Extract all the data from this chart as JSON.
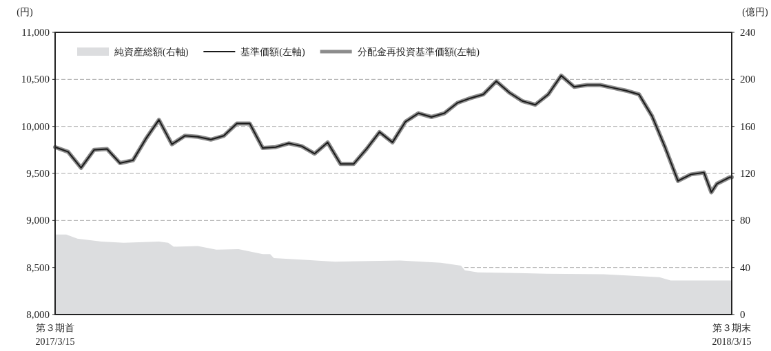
{
  "chart_data": {
    "type": "line",
    "ylabel": "(円)",
    "y2label": "(億円)",
    "xlim": [
      "2017-03-15",
      "2018-03-15"
    ],
    "xticks": [
      {
        "value": "2017-03-15",
        "label": "第３期首\n2017/3/15"
      },
      {
        "value": "2018-03-15",
        "label": "第３期末\n2018/3/15"
      }
    ],
    "ylim": [
      8000,
      11000
    ],
    "yticks": [
      {
        "value": 8000,
        "label": "8,000"
      },
      {
        "value": 8500,
        "label": "8,500"
      },
      {
        "value": 9000,
        "label": "9,000"
      },
      {
        "value": 9500,
        "label": "9,500"
      },
      {
        "value": 10000,
        "label": "10,000"
      },
      {
        "value": 10500,
        "label": "10,500"
      },
      {
        "value": 11000,
        "label": "11,000"
      }
    ],
    "y2lim": [
      0,
      240
    ],
    "y2ticks": [
      0,
      40,
      80,
      120,
      160,
      200,
      240
    ],
    "grid": "y",
    "legend": "top left",
    "series": [
      {
        "name": "純資産総額(右軸)",
        "type": "area",
        "axis": "y2",
        "color": "#dcdddf",
        "x": [
          "2017-03-15",
          "2017-03-21",
          "2017-03-27",
          "2017-04-09",
          "2017-04-21",
          "2017-05-10",
          "2017-05-15",
          "2017-05-18",
          "2017-05-31",
          "2017-06-10",
          "2017-06-22",
          "2017-07-05",
          "2017-07-09",
          "2017-07-11",
          "2017-07-29",
          "2017-08-13",
          "2017-09-17",
          "2017-10-09",
          "2017-10-20",
          "2017-10-22",
          "2017-10-29",
          "2017-12-05",
          "2018-01-05",
          "2018-02-04",
          "2018-02-10",
          "2018-03-15"
        ],
        "values": [
          68,
          68,
          64.5,
          62,
          61,
          62,
          61,
          57.7,
          58.3,
          55.2,
          55.6,
          51.3,
          51.3,
          48,
          46.4,
          45,
          46,
          44,
          41.5,
          37.6,
          35.9,
          34.7,
          34.3,
          31.8,
          29,
          29
        ]
      },
      {
        "name": "基準価額(左軸)",
        "axis": "y",
        "color": "#1a1a1a",
        "x": [
          "2017-03-15",
          "2017-03-22",
          "2017-03-29",
          "2017-04-05",
          "2017-04-12",
          "2017-04-19",
          "2017-04-26",
          "2017-05-03",
          "2017-05-10",
          "2017-05-17",
          "2017-05-24",
          "2017-05-31",
          "2017-06-07",
          "2017-06-14",
          "2017-06-21",
          "2017-06-28",
          "2017-07-05",
          "2017-07-12",
          "2017-07-19",
          "2017-07-26",
          "2017-08-02",
          "2017-08-09",
          "2017-08-16",
          "2017-08-23",
          "2017-08-30",
          "2017-09-06",
          "2017-09-13",
          "2017-09-20",
          "2017-09-27",
          "2017-10-04",
          "2017-10-11",
          "2017-10-18",
          "2017-10-25",
          "2017-11-01",
          "2017-11-08",
          "2017-11-15",
          "2017-11-22",
          "2017-11-29",
          "2017-12-06",
          "2017-12-13",
          "2017-12-20",
          "2017-12-27",
          "2018-01-03",
          "2018-01-10",
          "2018-01-17",
          "2018-01-24",
          "2018-01-31",
          "2018-02-07",
          "2018-02-14",
          "2018-02-21",
          "2018-02-28",
          "2018-03-04",
          "2018-03-07",
          "2018-03-14",
          "2018-03-15"
        ],
        "values": [
          9780,
          9730,
          9560,
          9750,
          9760,
          9610,
          9640,
          9870,
          10070,
          9810,
          9900,
          9890,
          9860,
          9900,
          10030,
          10030,
          9770,
          9780,
          9820,
          9790,
          9710,
          9830,
          9600,
          9600,
          9760,
          9940,
          9830,
          10050,
          10140,
          10100,
          10140,
          10250,
          10300,
          10340,
          10480,
          10360,
          10270,
          10230,
          10340,
          10540,
          10420,
          10440,
          10440,
          10410,
          10380,
          10340,
          10110,
          9780,
          9420,
          9490,
          9510,
          9300,
          9390,
          9460,
          9460
        ]
      },
      {
        "name": "分配金再投資基準価額(左軸)",
        "axis": "y",
        "color": "#8c8c8c",
        "x": [
          "2017-03-15",
          "2017-03-22",
          "2017-03-29",
          "2017-04-05",
          "2017-04-12",
          "2017-04-19",
          "2017-04-26",
          "2017-05-03",
          "2017-05-10",
          "2017-05-17",
          "2017-05-24",
          "2017-05-31",
          "2017-06-07",
          "2017-06-14",
          "2017-06-21",
          "2017-06-28",
          "2017-07-05",
          "2017-07-12",
          "2017-07-19",
          "2017-07-26",
          "2017-08-02",
          "2017-08-09",
          "2017-08-16",
          "2017-08-23",
          "2017-08-30",
          "2017-09-06",
          "2017-09-13",
          "2017-09-20",
          "2017-09-27",
          "2017-10-04",
          "2017-10-11",
          "2017-10-18",
          "2017-10-25",
          "2017-11-01",
          "2017-11-08",
          "2017-11-15",
          "2017-11-22",
          "2017-11-29",
          "2017-12-06",
          "2017-12-13",
          "2017-12-20",
          "2017-12-27",
          "2018-01-03",
          "2018-01-10",
          "2018-01-17",
          "2018-01-24",
          "2018-01-31",
          "2018-02-07",
          "2018-02-14",
          "2018-02-21",
          "2018-02-28",
          "2018-03-04",
          "2018-03-07",
          "2018-03-14",
          "2018-03-15"
        ],
        "values": [
          9780,
          9730,
          9560,
          9750,
          9760,
          9610,
          9640,
          9870,
          10070,
          9810,
          9900,
          9890,
          9860,
          9900,
          10030,
          10030,
          9770,
          9780,
          9820,
          9790,
          9710,
          9830,
          9600,
          9600,
          9760,
          9940,
          9830,
          10050,
          10140,
          10100,
          10140,
          10250,
          10300,
          10340,
          10480,
          10360,
          10270,
          10230,
          10340,
          10540,
          10420,
          10440,
          10440,
          10410,
          10380,
          10340,
          10110,
          9780,
          9420,
          9490,
          9510,
          9300,
          9390,
          9460,
          9460
        ]
      }
    ]
  }
}
